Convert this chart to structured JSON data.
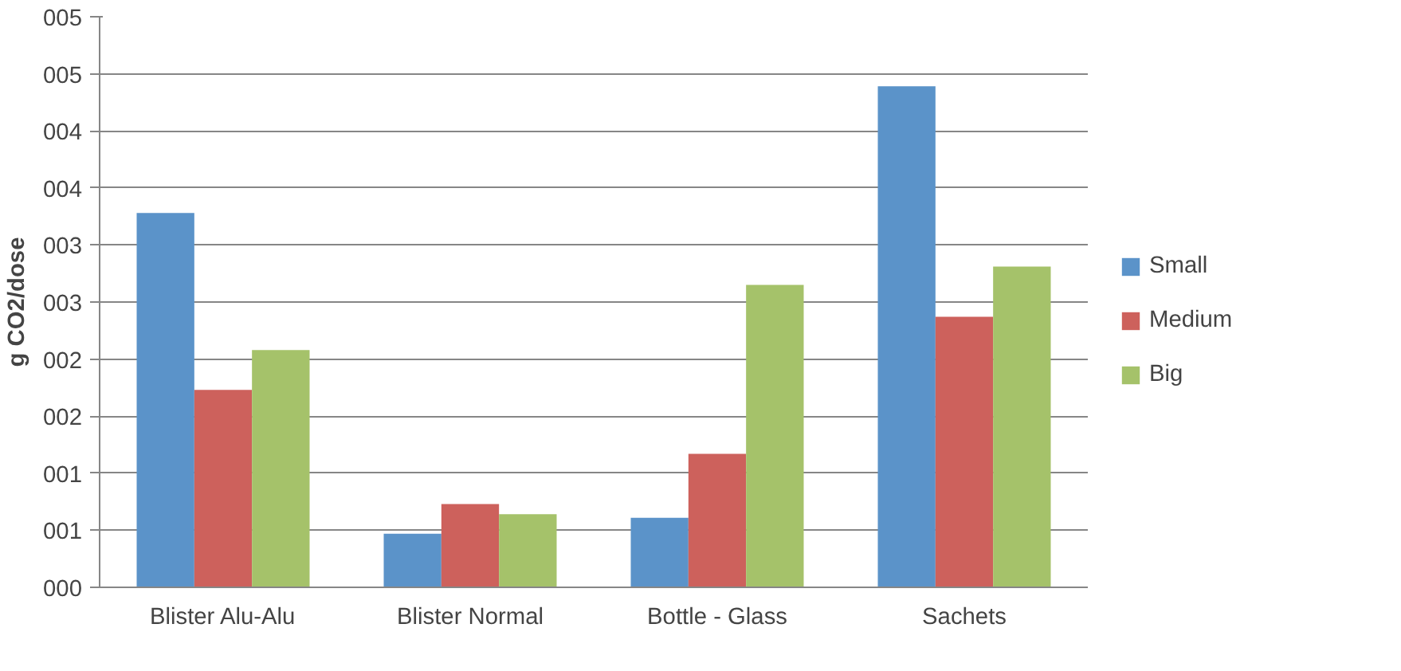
{
  "chart_data": {
    "type": "bar",
    "ylabel": "g CO2/dose",
    "categories": [
      "Blister Alu-Alu",
      "Blister Normal",
      "Bottle - Glass",
      "Sachets"
    ],
    "series": [
      {
        "name": "Small",
        "color": "#5b93c9",
        "values": [
          3.28,
          0.47,
          0.61,
          4.39
        ]
      },
      {
        "name": "Medium",
        "color": "#cd615c",
        "values": [
          1.73,
          0.73,
          1.17,
          2.37
        ]
      },
      {
        "name": "Big",
        "color": "#a5c26a",
        "values": [
          2.08,
          0.64,
          2.65,
          2.81
        ]
      }
    ],
    "ylim": [
      0,
      5
    ],
    "yticks": [
      {
        "value": 0,
        "label": "000"
      },
      {
        "value": 0.5,
        "label": "001"
      },
      {
        "value": 1,
        "label": "001"
      },
      {
        "value": 1.5,
        "label": "002"
      },
      {
        "value": 2,
        "label": "002"
      },
      {
        "value": 2.5,
        "label": "003"
      },
      {
        "value": 3,
        "label": "003"
      },
      {
        "value": 3.5,
        "label": "004"
      },
      {
        "value": 4,
        "label": "004"
      },
      {
        "value": 4.5,
        "label": "005"
      },
      {
        "value": 5,
        "label": "005"
      }
    ],
    "grid": "y",
    "legend": "right"
  }
}
